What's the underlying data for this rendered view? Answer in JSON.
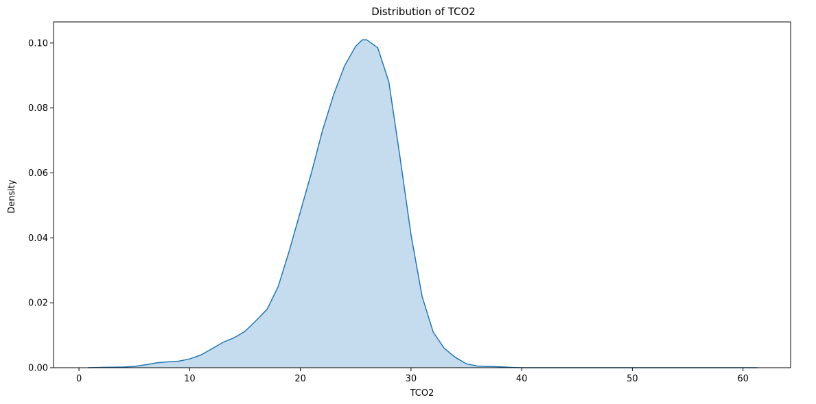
{
  "chart_data": {
    "type": "area",
    "title": "Distribution of TCO2",
    "xlabel": "TCO2",
    "ylabel": "Density",
    "xlim": [
      -2.3,
      64.3
    ],
    "ylim": [
      0,
      0.1065
    ],
    "x_ticks": [
      0,
      10,
      20,
      30,
      40,
      50,
      60
    ],
    "y_ticks": [
      0.0,
      0.02,
      0.04,
      0.06,
      0.08,
      0.1
    ],
    "x_tick_labels": [
      "0",
      "10",
      "20",
      "30",
      "40",
      "50",
      "60"
    ],
    "y_tick_labels": [
      "0.00",
      "0.02",
      "0.04",
      "0.06",
      "0.08",
      "0.10"
    ],
    "grid": false,
    "legend": "none",
    "colors": {
      "line": "#1f77b4",
      "fill": "#c5dcee"
    },
    "series": [
      {
        "x": [
          0.8,
          2,
          4,
          5,
          6,
          7,
          8,
          9,
          10,
          11,
          12,
          13,
          14,
          15,
          16,
          17,
          18,
          19,
          20,
          21,
          22,
          23,
          24,
          25,
          25.6,
          26,
          26.4,
          27,
          28,
          29,
          30,
          31,
          32,
          33,
          34,
          35,
          36,
          37,
          38,
          39,
          40,
          45,
          50,
          55,
          61.3
        ],
        "y": [
          0.0,
          0.0001,
          0.0002,
          0.0004,
          0.0009,
          0.0015,
          0.0018,
          0.002,
          0.0027,
          0.0039,
          0.0058,
          0.0078,
          0.0092,
          0.0112,
          0.0145,
          0.018,
          0.025,
          0.036,
          0.048,
          0.06,
          0.073,
          0.084,
          0.093,
          0.099,
          0.101,
          0.101,
          0.1,
          0.0985,
          0.088,
          0.065,
          0.041,
          0.022,
          0.011,
          0.006,
          0.0032,
          0.0012,
          0.0005,
          0.0004,
          0.0003,
          0.0001,
          0.0,
          0.0,
          0.0,
          0.0,
          0.0
        ]
      }
    ]
  }
}
